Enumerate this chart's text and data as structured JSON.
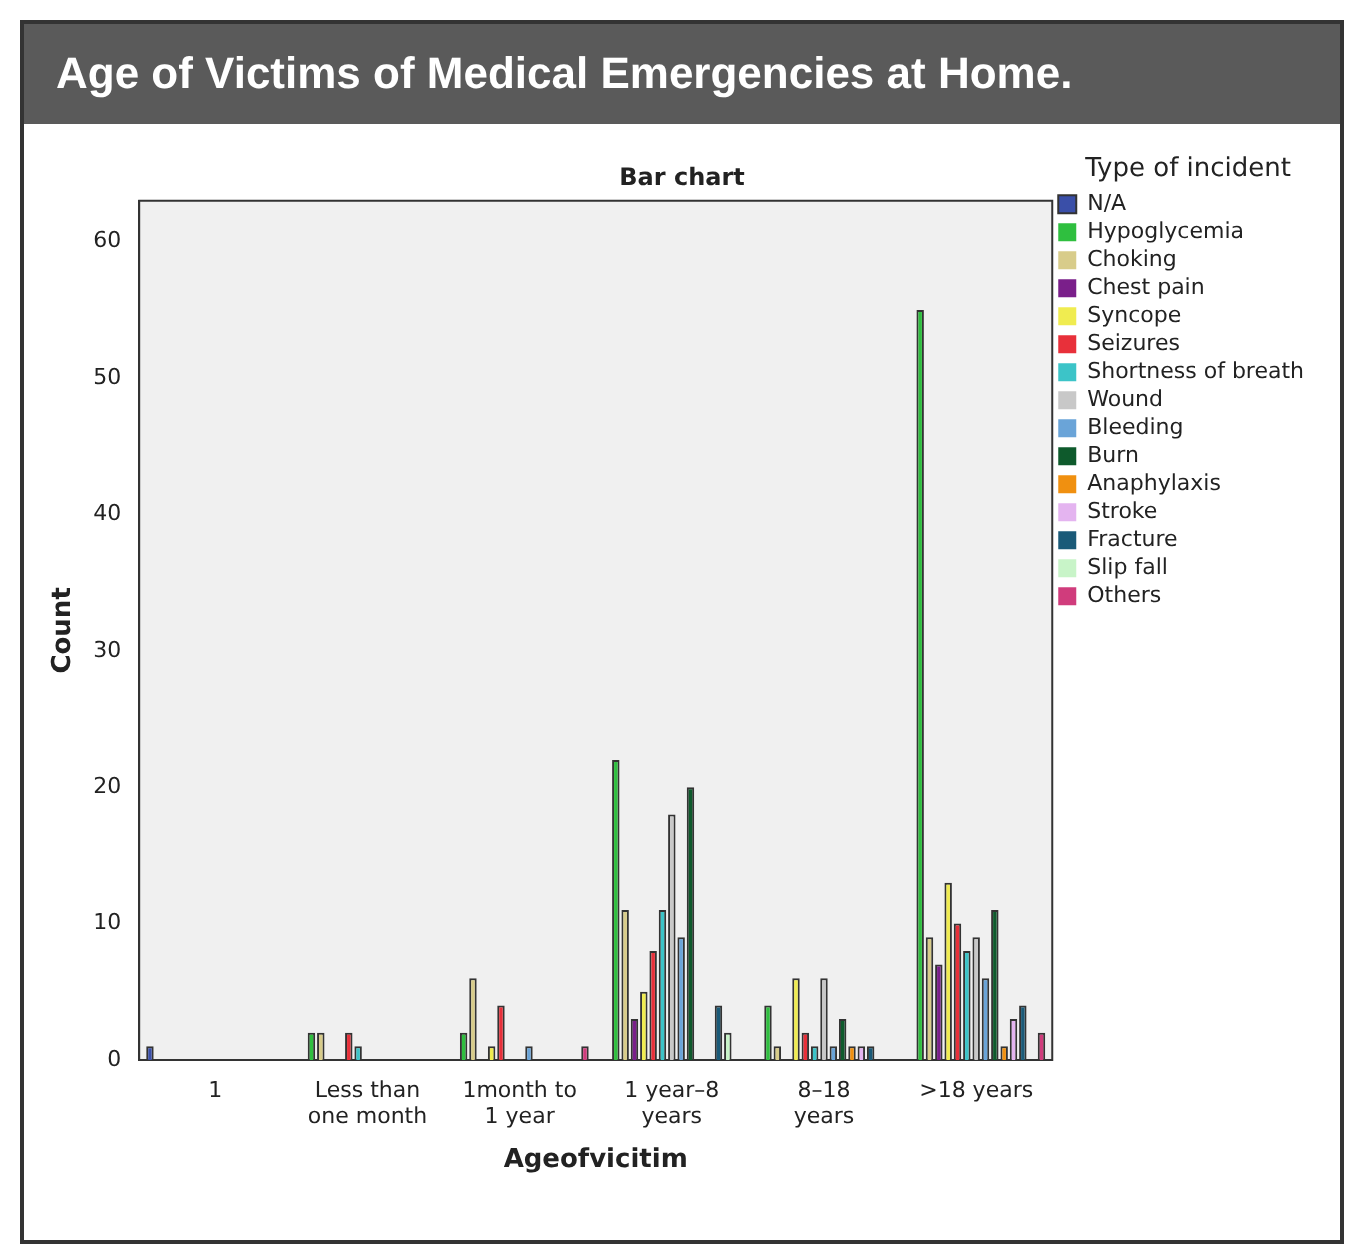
{
  "chart_data": {
    "type": "bar",
    "title": "Bar chart",
    "subtitle": "Age of Victims of Medical Emergencies at Home.",
    "xlabel": "Ageofvicitim",
    "ylabel": "Count",
    "legend_title": "Type of incident",
    "legend": "right",
    "categories": [
      "1",
      "Less than one month",
      "1month to 1 year",
      "1 year–8 years",
      "8–18 years",
      ">18 years"
    ],
    "ylim": [
      0,
      63
    ],
    "yticks": [
      0,
      10,
      20,
      30,
      40,
      50,
      60
    ],
    "grid": false,
    "series": [
      {
        "name": "N/A",
        "color": "#3a4fa8",
        "values": [
          1,
          0,
          0,
          0,
          0,
          0
        ]
      },
      {
        "name": "Hypoglycemia",
        "color": "#2fbf3f",
        "values": [
          0,
          2,
          2,
          22,
          4,
          55
        ]
      },
      {
        "name": "Choking",
        "color": "#d8cc8a",
        "values": [
          0,
          2,
          6,
          11,
          1,
          9
        ]
      },
      {
        "name": "Chest pain",
        "color": "#7a1f8a",
        "values": [
          0,
          0,
          0,
          3,
          0,
          7
        ]
      },
      {
        "name": "Syncope",
        "color": "#f0ec50",
        "values": [
          0,
          0,
          1,
          5,
          6,
          13
        ]
      },
      {
        "name": "Seizures",
        "color": "#e8303a",
        "values": [
          0,
          2,
          4,
          8,
          2,
          10
        ]
      },
      {
        "name": "Shortness of breath",
        "color": "#3cc4c8",
        "values": [
          0,
          1,
          0,
          11,
          1,
          8
        ]
      },
      {
        "name": "Wound",
        "color": "#c8c8c8",
        "values": [
          0,
          0,
          0,
          18,
          6,
          9
        ]
      },
      {
        "name": "Bleeding",
        "color": "#6aa4d8",
        "values": [
          0,
          0,
          1,
          9,
          1,
          6
        ]
      },
      {
        "name": "Burn",
        "color": "#0e5a2c",
        "values": [
          0,
          0,
          0,
          20,
          3,
          11
        ]
      },
      {
        "name": "Anaphylaxis",
        "color": "#f09010",
        "values": [
          0,
          0,
          0,
          0,
          1,
          1
        ]
      },
      {
        "name": "Stroke",
        "color": "#e4b4f0",
        "values": [
          0,
          0,
          0,
          0,
          1,
          3
        ]
      },
      {
        "name": "Fracture",
        "color": "#1a5a78",
        "values": [
          0,
          0,
          0,
          4,
          1,
          4
        ]
      },
      {
        "name": "Slip fall",
        "color": "#c8f4c8",
        "values": [
          0,
          0,
          0,
          2,
          0,
          0
        ]
      },
      {
        "name": "Others",
        "color": "#d03c7c",
        "values": [
          0,
          0,
          1,
          0,
          0,
          2
        ]
      }
    ]
  }
}
